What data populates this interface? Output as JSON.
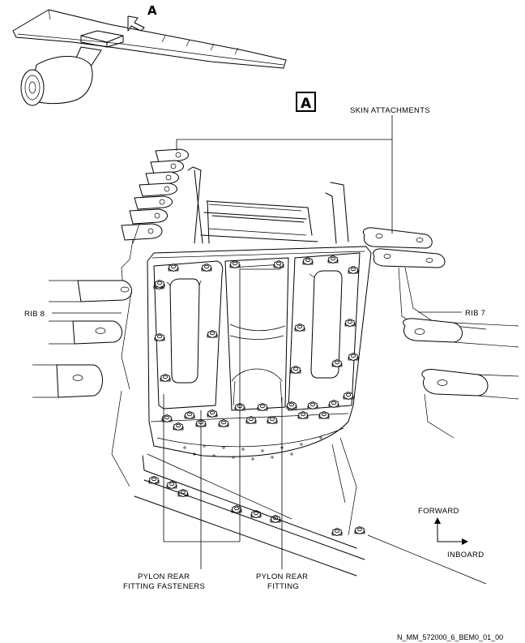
{
  "diagram": {
    "detail_callout": "A",
    "view_box_label": "A",
    "labels": {
      "skin_attachments": "SKIN ATTACHMENTS",
      "rib8": "RIB 8",
      "rib7": "RIB 7",
      "fasteners_line1": "PYLON REAR",
      "fasteners_line2": "FITTING FASTENERS",
      "fitting_line1": "PYLON REAR",
      "fitting_line2": "FITTING",
      "forward": "FORWARD",
      "inboard": "INBOARD"
    },
    "figure_reference": "N_MM_572000_6_BEM0_01_00"
  }
}
